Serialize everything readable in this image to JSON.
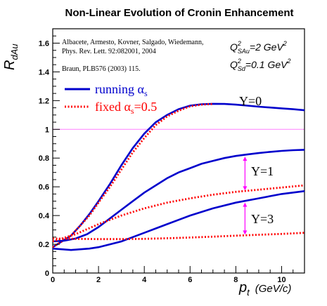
{
  "chart_data": {
    "type": "line",
    "title": "Non-Linear Evolution of Cronin Enhancement",
    "ylabel_main": "R",
    "ylabel_sub": "dAu",
    "xlabel_main": "p",
    "xlabel_sub": "t",
    "xlabel_unit": "(GeV/c)",
    "xlim": [
      0,
      11
    ],
    "ylim": [
      0,
      1.7
    ],
    "x_ticks": [
      0,
      2,
      4,
      6,
      8,
      10
    ],
    "y_ticks": [
      0,
      0.2,
      0.4,
      0.6,
      0.8,
      1.0,
      1.2,
      1.4,
      1.6
    ],
    "x_tick_labels": [
      "0",
      "2",
      "4",
      "6",
      "8",
      "10"
    ],
    "y_tick_labels": [
      "0",
      "0.2",
      "0.4",
      "0.6",
      "0.8",
      "1",
      "1.2",
      "1.4",
      "1.6"
    ],
    "reference_line": {
      "y": 1.0,
      "color": "#ff00ff"
    },
    "references": {
      "line1": "Albacete, Armesto, Kovner, Salgado, Wiedemann,",
      "line2": "Phys. Rev. Lett. 92:082001, 2004",
      "line3": "Braun, PLB576 (2003) 115."
    },
    "params": {
      "q1_main": "Q",
      "q1_sup": "2",
      "q1_sub": "SAu",
      "q1_rest": "=2 GeV",
      "q1_rest_sup": "2",
      "q2_main": "Q",
      "q2_sup": "2",
      "q2_sub": "Sd",
      "q2_rest": "=0.1 GeV",
      "q2_rest_sup": "2"
    },
    "legend": {
      "placement": "top-left",
      "running_text": "running α",
      "running_sub": "s",
      "fixed_text": "fixed α",
      "fixed_sub": "s",
      "fixed_rest": "=0.5"
    },
    "annotations": {
      "y0": "Y=0",
      "y1": "Y=1",
      "y3": "Y=3"
    },
    "arrow_color": "#ff00ff",
    "series": [
      {
        "legend_ref": "running",
        "label_ref": "Y=0",
        "style": "solid",
        "color": "#0000cc",
        "x": [
          0,
          0.4,
          0.8,
          1.2,
          1.6,
          2.0,
          2.5,
          3.0,
          3.5,
          4.0,
          4.5,
          5.0,
          5.5,
          6.0,
          6.5,
          7.0,
          7.5,
          8.0,
          8.5,
          9.0,
          9.5,
          10.0,
          10.5,
          11.0
        ],
        "y": [
          0.18,
          0.22,
          0.26,
          0.33,
          0.41,
          0.5,
          0.62,
          0.75,
          0.87,
          0.97,
          1.05,
          1.1,
          1.14,
          1.165,
          1.175,
          1.178,
          1.177,
          1.172,
          1.165,
          1.158,
          1.152,
          1.146,
          1.14,
          1.133
        ]
      },
      {
        "legend_ref": "fixed",
        "label_ref": "Y=0",
        "style": "dotted",
        "color": "#ff0000",
        "x": [
          0,
          0.4,
          0.8,
          1.2,
          1.6,
          2.0,
          2.5,
          3.0,
          3.5,
          4.0,
          4.5,
          5.0,
          5.5,
          6.0,
          6.5,
          7.0
        ],
        "y": [
          0.18,
          0.22,
          0.26,
          0.33,
          0.4,
          0.49,
          0.6,
          0.72,
          0.84,
          0.94,
          1.03,
          1.09,
          1.13,
          1.16,
          1.172,
          1.177
        ]
      },
      {
        "legend_ref": "running",
        "label_ref": "Y=1",
        "style": "solid",
        "color": "#0000cc",
        "x": [
          0,
          0.5,
          1.0,
          1.5,
          2.0,
          2.5,
          3.0,
          3.5,
          4.0,
          4.5,
          5.0,
          5.5,
          6.0,
          6.5,
          7.0,
          7.5,
          8.0,
          8.5,
          9.0,
          9.5,
          10.0,
          10.5,
          11.0
        ],
        "y": [
          0.22,
          0.225,
          0.24,
          0.27,
          0.32,
          0.38,
          0.44,
          0.5,
          0.56,
          0.61,
          0.66,
          0.7,
          0.73,
          0.76,
          0.78,
          0.8,
          0.815,
          0.825,
          0.835,
          0.843,
          0.85,
          0.855,
          0.858
        ]
      },
      {
        "legend_ref": "fixed",
        "label_ref": "Y=1",
        "style": "dotted",
        "color": "#ff0000",
        "x": [
          0,
          1.0,
          2.0,
          3.0,
          4.0,
          5.0,
          6.0,
          7.0,
          8.0,
          9.0,
          10.0,
          11.0
        ],
        "y": [
          0.22,
          0.27,
          0.34,
          0.4,
          0.45,
          0.49,
          0.52,
          0.545,
          0.565,
          0.58,
          0.595,
          0.61
        ]
      },
      {
        "legend_ref": "running",
        "label_ref": "Y=3",
        "style": "solid",
        "color": "#0000cc",
        "x": [
          0,
          0.4,
          0.8,
          1.2,
          1.6,
          2.0,
          2.5,
          3.0,
          3.5,
          4.0,
          4.5,
          5.0,
          6.0,
          7.0,
          8.0,
          9.0,
          10.0,
          11.0
        ],
        "y": [
          0.17,
          0.165,
          0.16,
          0.165,
          0.17,
          0.18,
          0.2,
          0.22,
          0.25,
          0.28,
          0.31,
          0.34,
          0.4,
          0.45,
          0.49,
          0.52,
          0.55,
          0.57
        ]
      },
      {
        "legend_ref": "fixed",
        "label_ref": "Y=3",
        "style": "dotted",
        "color": "#ff0000",
        "x": [
          0,
          1,
          2,
          3,
          4,
          5,
          6,
          7,
          8,
          9,
          10,
          11
        ],
        "y": [
          0.24,
          0.238,
          0.236,
          0.236,
          0.238,
          0.242,
          0.247,
          0.253,
          0.26,
          0.266,
          0.272,
          0.28
        ]
      }
    ]
  }
}
